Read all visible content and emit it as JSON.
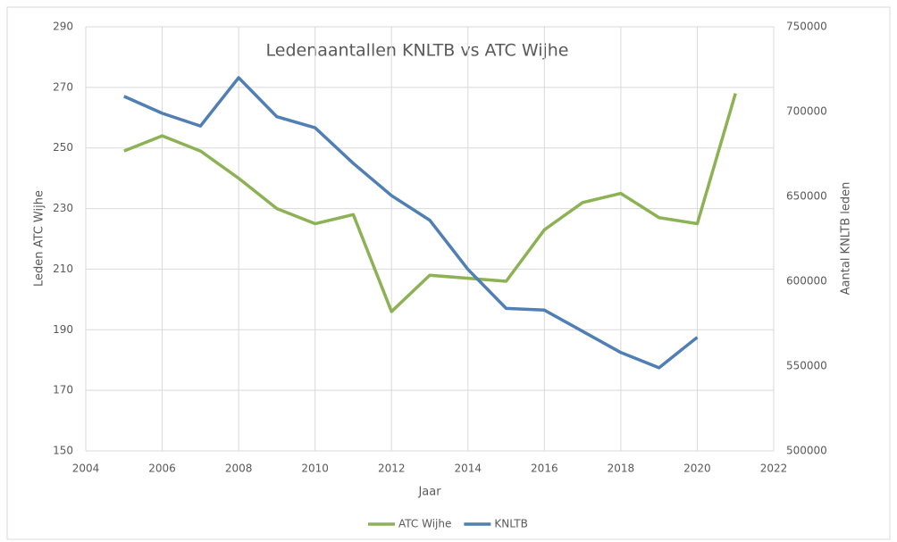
{
  "chart_data": {
    "type": "line",
    "title": "Ledenaantallen  KNLTB vs ATC Wijhe",
    "xlabel": "Jaar",
    "ylabel": "Leden ATC Wijhe",
    "y2label": "Aantal KNLTB leden",
    "x": [
      2005,
      2006,
      2007,
      2008,
      2009,
      2010,
      2011,
      2012,
      2013,
      2014,
      2015,
      2016,
      2017,
      2018,
      2019,
      2020,
      2021
    ],
    "series": [
      {
        "name": "ATC Wijhe",
        "color": "#8db255",
        "values": [
          249,
          254,
          249,
          240,
          230,
          225,
          228,
          196,
          208,
          207,
          206,
          223,
          232,
          235,
          227,
          225,
          268
        ]
      },
      {
        "name": "KNLTB",
        "color": "#4f7fb4",
        "axis": "y2",
        "values": [
          709000,
          699000,
          691500,
          720000,
          697000,
          690500,
          669500,
          650500,
          636000,
          607000,
          584000,
          583000,
          570500,
          558000,
          549000,
          567000,
          null
        ]
      }
    ],
    "xlim": [
      2004,
      2022
    ],
    "xticks": [
      2004,
      2006,
      2008,
      2010,
      2012,
      2014,
      2016,
      2018,
      2020,
      2022
    ],
    "ylim": [
      150,
      290
    ],
    "yticks": [
      150,
      170,
      190,
      210,
      230,
      250,
      270,
      290
    ],
    "y2lim": [
      500000,
      750000
    ],
    "y2ticks": [
      500000,
      550000,
      600000,
      650000,
      700000,
      750000
    ],
    "grid": true,
    "legend": "bottom"
  }
}
